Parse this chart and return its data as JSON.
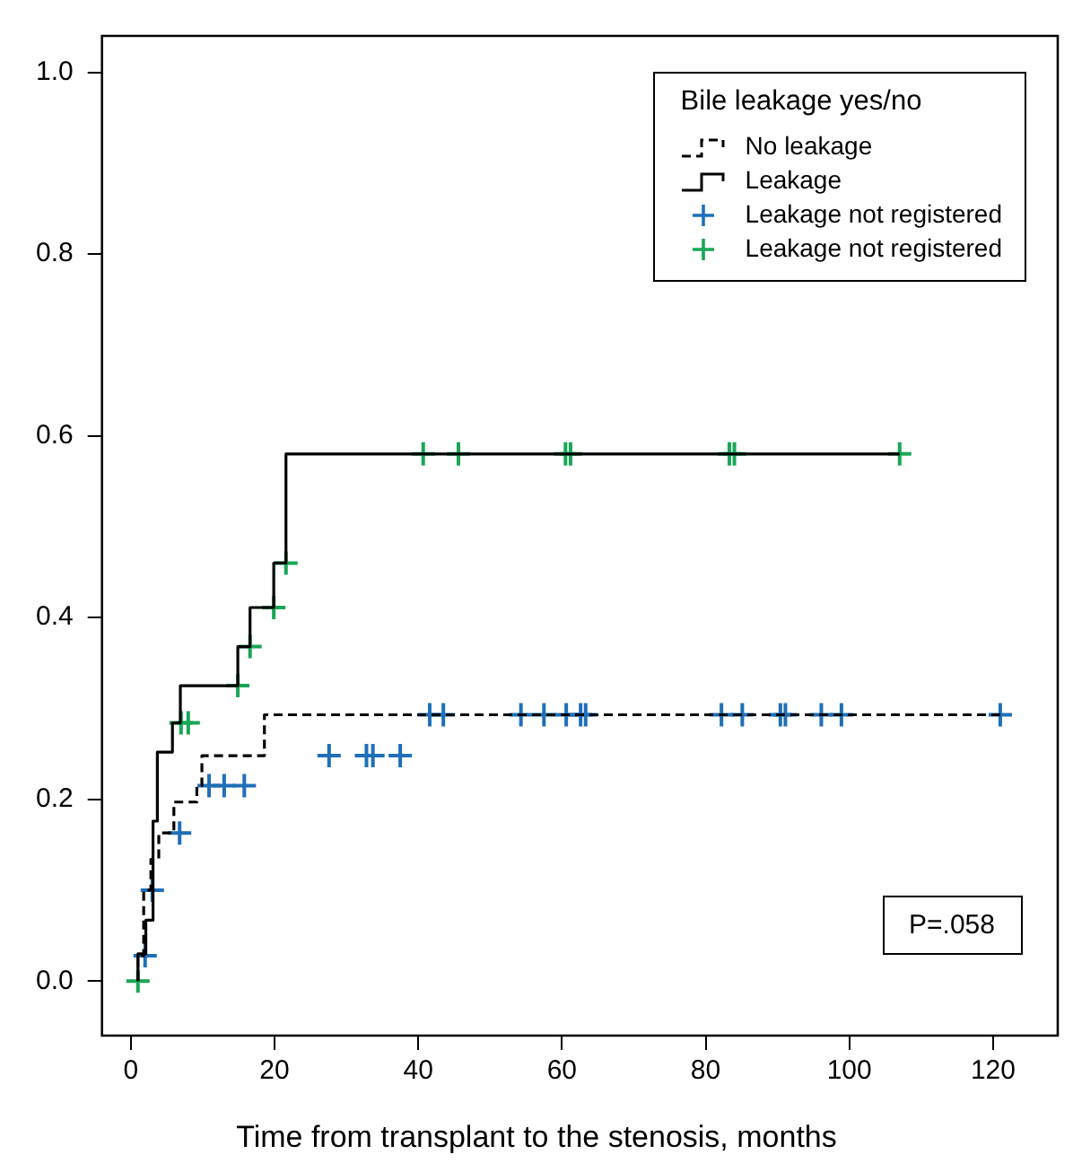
{
  "chart_data": {
    "type": "step",
    "xlabel": "Time from transplant to the stenosis, months",
    "legend_title": "Bile leakage yes/no",
    "legend": "top right",
    "grid": false,
    "xlim": [
      -4,
      129
    ],
    "xticks": [
      0,
      20,
      40,
      60,
      80,
      100,
      120
    ],
    "ylim": [
      -0.06,
      1.04
    ],
    "yticks": [
      {
        "value": 0,
        "label": "0.0"
      },
      {
        "value": 0.2,
        "label": "0.2"
      },
      {
        "value": 0.4,
        "label": "0.4"
      },
      {
        "value": 0.6,
        "label": "0.6"
      },
      {
        "value": 0.8,
        "label": "0.8"
      },
      {
        "value": 1,
        "label": "1.0"
      }
    ],
    "annotations": [
      "P=.058"
    ],
    "series": [
      {
        "name": "No leakage",
        "color": "#000000",
        "line_style": "dashed",
        "marker": "none",
        "x": [
          1,
          1.8,
          2.8,
          3.9,
          6,
          9.2,
          9.9,
          18.6,
          39.7,
          121
        ],
        "values": [
          0,
          0.028,
          0.1,
          0.134,
          0.163,
          0.197,
          0.215,
          0.248,
          0.293,
          0.293
        ]
      },
      {
        "name": "Leakage",
        "color": "#000000",
        "line_style": "solid",
        "marker": "none",
        "x": [
          1,
          2.1,
          3.1,
          3.7,
          5.8,
          6.9,
          14.9,
          16.6,
          19.9,
          21.6,
          23.7,
          107
        ],
        "values": [
          0,
          0.03,
          0.067,
          0.176,
          0.252,
          0.284,
          0.325,
          0.368,
          0.411,
          0.46,
          0.58,
          0.58
        ]
      },
      {
        "name": "Leakage not registered",
        "type": "scatter",
        "color": "#1f6fb8",
        "marker": "cross",
        "x": [
          2,
          3,
          6.8,
          10.9,
          13,
          15.8,
          27.6,
          32.8,
          33.7,
          37.5,
          41.6,
          43.5,
          54.3,
          57.5,
          60.6,
          62.6,
          63.3,
          82.2,
          85.1,
          90.4,
          91.1,
          96.1,
          98.9,
          121
        ],
        "values": [
          0.028,
          0.1,
          0.163,
          0.215,
          0.215,
          0.215,
          0.248,
          0.248,
          0.248,
          0.248,
          0.293,
          0.293,
          0.293,
          0.293,
          0.293,
          0.293,
          0.293,
          0.293,
          0.293,
          0.293,
          0.293,
          0.293,
          0.293,
          0.293
        ]
      },
      {
        "name": "Leakage not registered",
        "type": "scatter",
        "color": "#19a656",
        "marker": "cross",
        "x": [
          1,
          7,
          8,
          14.9,
          16.6,
          19.9,
          21.6,
          40.7,
          45.6,
          60.5,
          61.2,
          83.3,
          84,
          107
        ],
        "values": [
          0,
          0.284,
          0.284,
          0.325,
          0.368,
          0.411,
          0.46,
          0.58,
          0.58,
          0.58,
          0.58,
          0.58,
          0.58,
          0.58
        ]
      }
    ]
  }
}
